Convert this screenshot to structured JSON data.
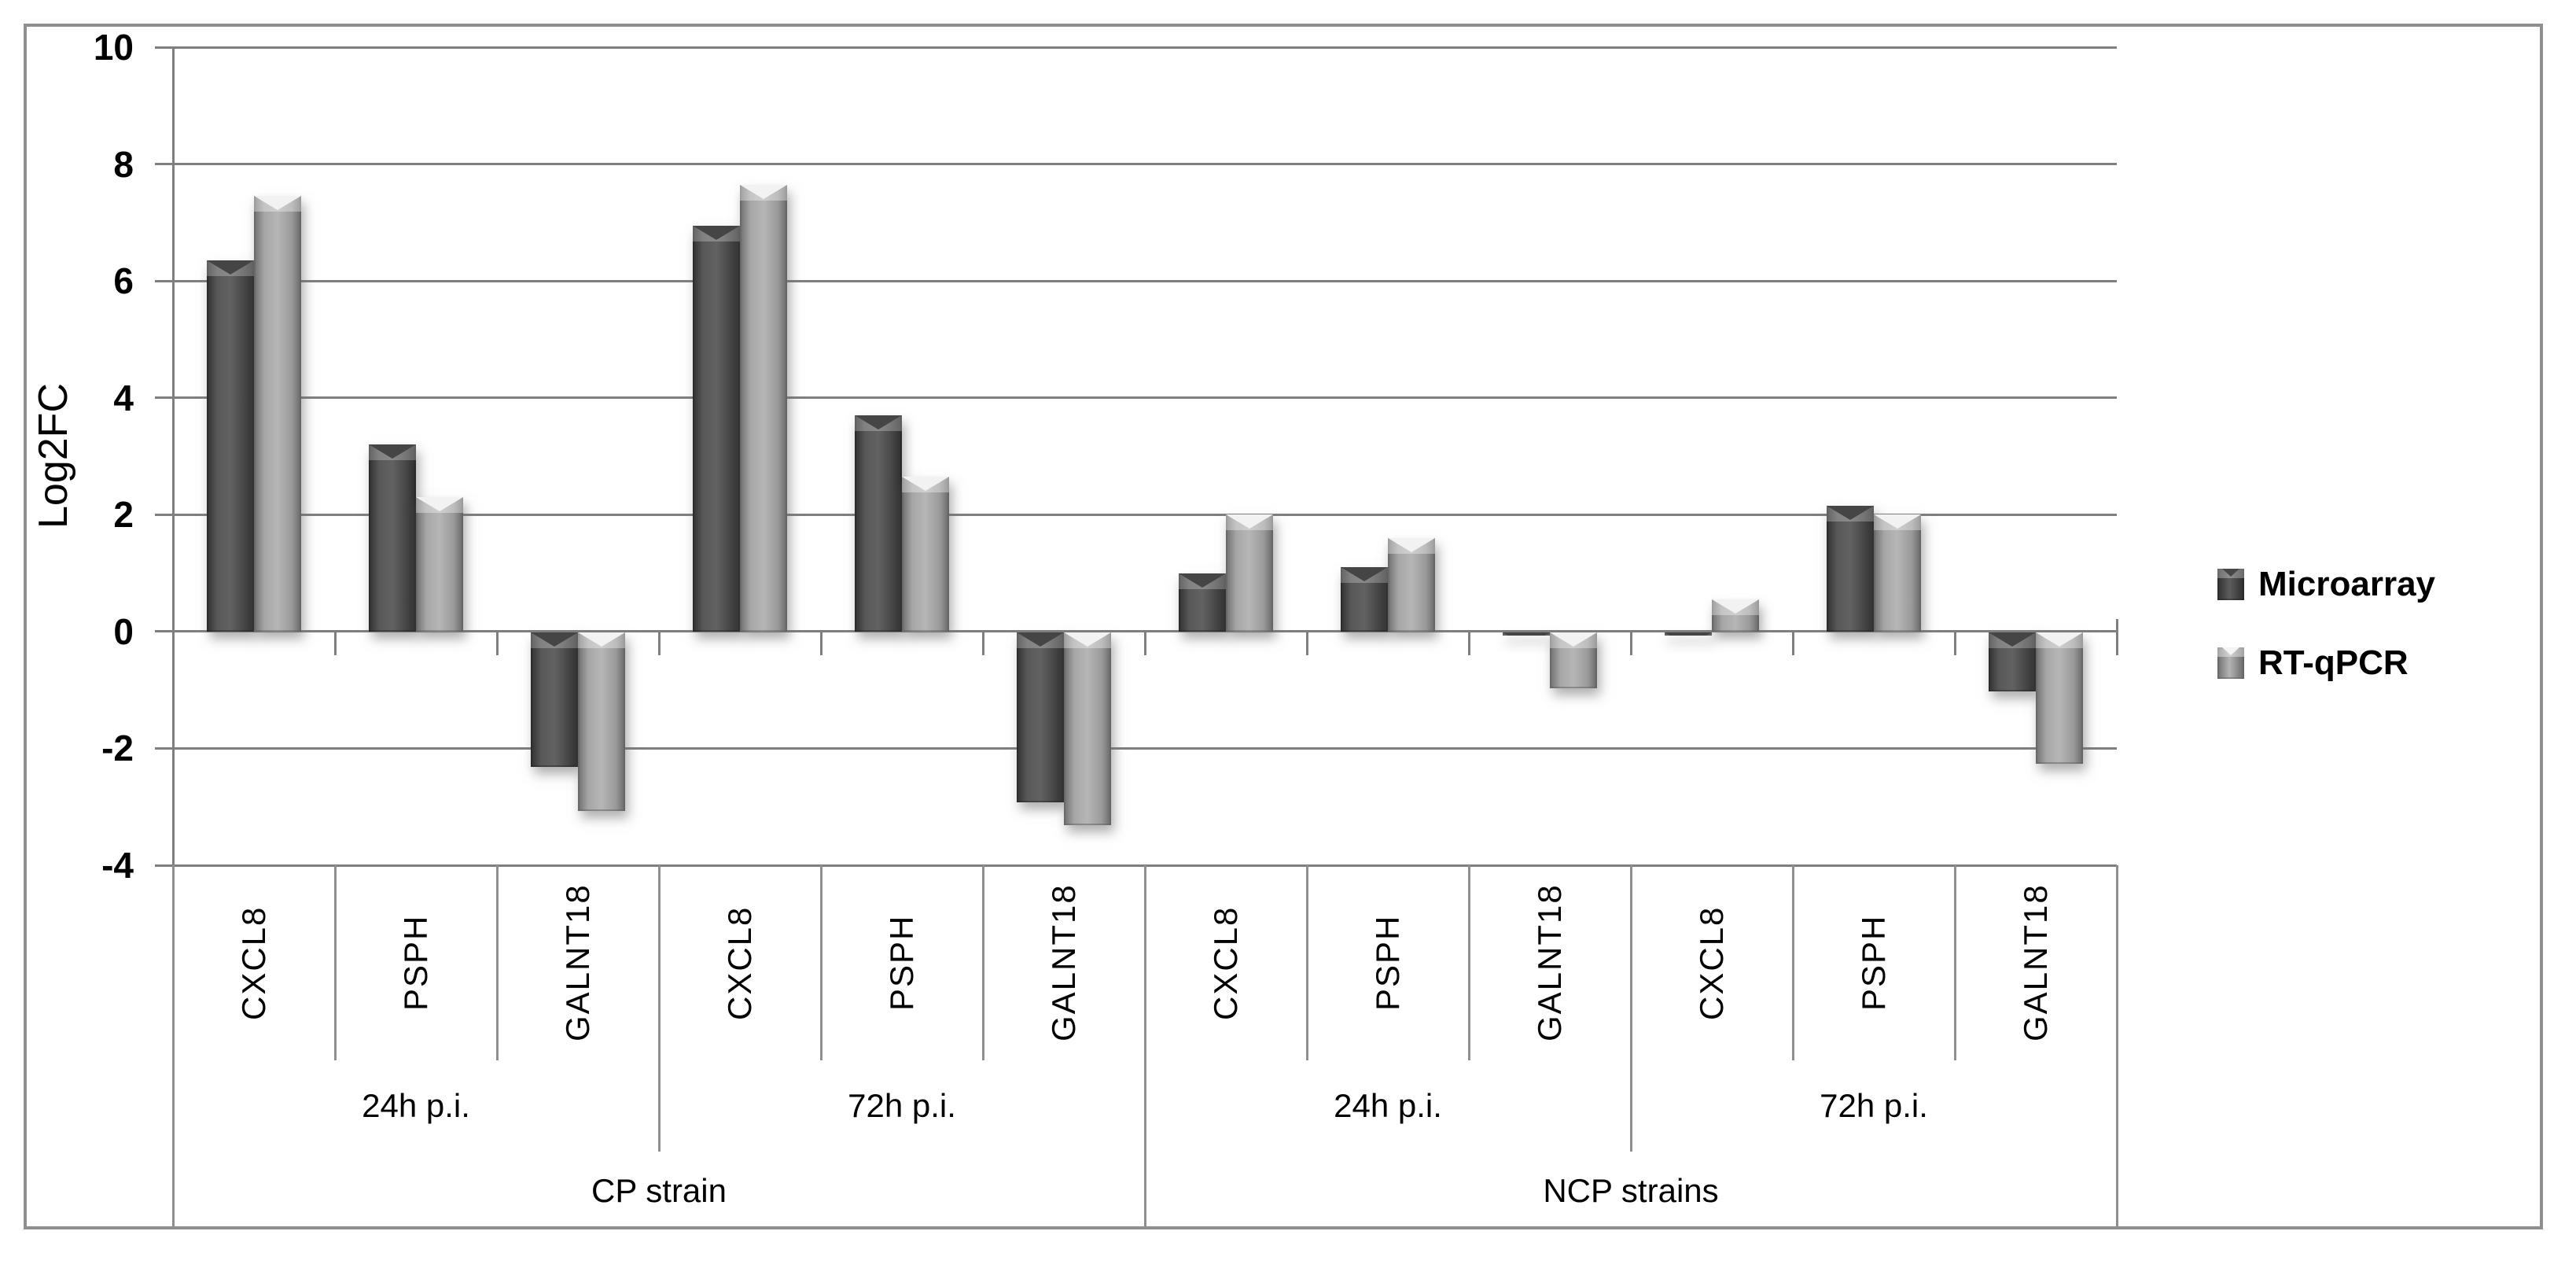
{
  "chart_data": {
    "type": "bar",
    "title": "",
    "ylabel": "Log2FC",
    "xlabel": "",
    "ylim": [
      -4,
      10
    ],
    "ytick_step": 2,
    "ytick_labels": [
      "10",
      "8",
      "6",
      "4",
      "2",
      "0",
      "-2",
      "-4"
    ],
    "grid": true,
    "legend_position": "right",
    "categories": [
      "CXCL8",
      "PSPH",
      "GALNT18",
      "CXCL8",
      "PSPH",
      "GALNT18",
      "CXCL8",
      "PSPH",
      "GALNT18",
      "CXCL8",
      "PSPH",
      "GALNT18"
    ],
    "series": [
      {
        "name": "Microarray",
        "key": "microarray",
        "color": "#4a4a4a",
        "values": [
          6.35,
          3.2,
          -2.3,
          6.95,
          3.7,
          -2.9,
          1.0,
          1.1,
          -0.05,
          -0.05,
          2.15,
          -1.0
        ]
      },
      {
        "name": "RT-qPCR",
        "key": "rt-qpcr",
        "color": "#a9a9a9",
        "values": [
          7.45,
          2.3,
          -3.05,
          7.65,
          2.65,
          -3.3,
          2.0,
          1.6,
          -0.95,
          0.55,
          2.0,
          -2.25
        ]
      }
    ],
    "time_groups": [
      {
        "label": "24h p.i.",
        "span": 3
      },
      {
        "label": "72h p.i.",
        "span": 3
      },
      {
        "label": "24h p.i.",
        "span": 3
      },
      {
        "label": "72h p.i.",
        "span": 3
      }
    ],
    "strain_groups": [
      {
        "label": "CP strain",
        "span": 6
      },
      {
        "label": "NCP strains",
        "span": 6
      }
    ]
  },
  "colors": {
    "gridline": "#7f7f7f",
    "table_line": "#8f8f8f",
    "frame_border": "#8e8e8e",
    "background": "#ffffff"
  }
}
